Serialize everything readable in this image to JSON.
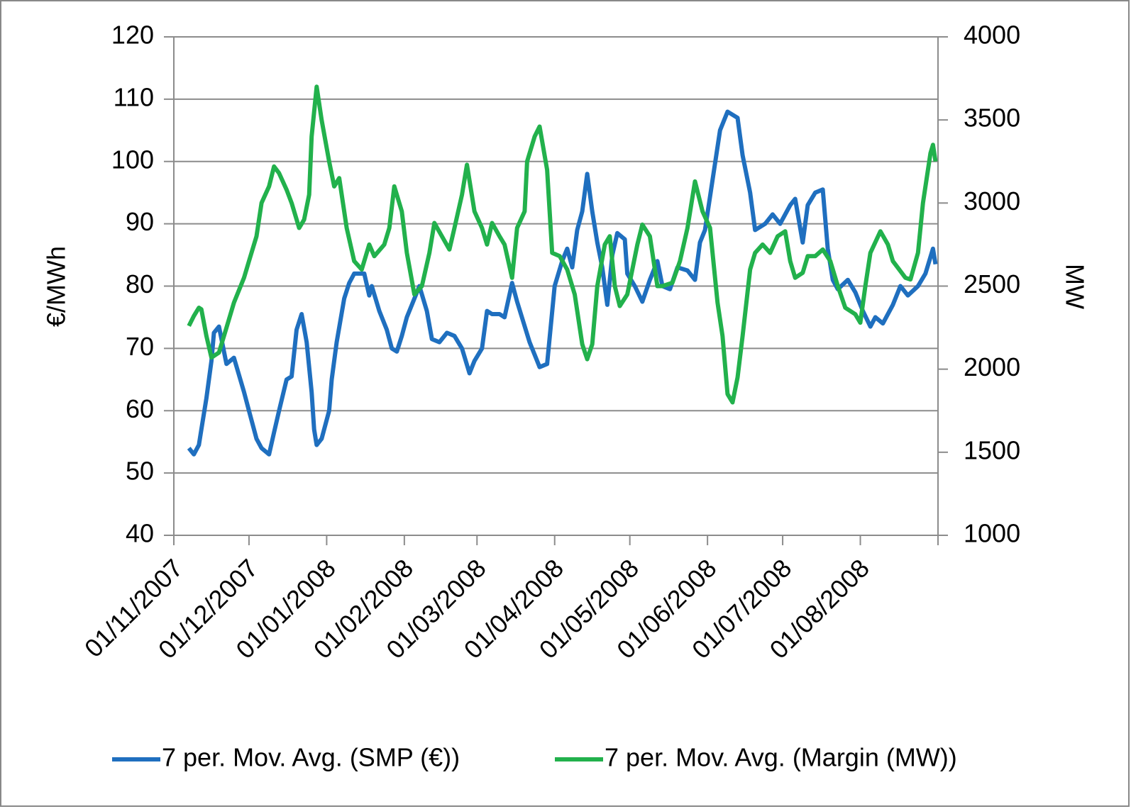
{
  "chart_data": {
    "type": "line",
    "ylabel": "€/MWh",
    "y2label": "MW",
    "xlim": [
      "01/11/2007",
      "01/09/2008"
    ],
    "xticks": [
      "01/11/2007",
      "01/12/2007",
      "01/01/2008",
      "01/02/2008",
      "01/03/2008",
      "01/04/2008",
      "01/05/2008",
      "01/06/2008",
      "01/07/2008",
      "01/08/2008"
    ],
    "ylim": [
      40,
      120
    ],
    "yticks": [
      40,
      50,
      60,
      70,
      80,
      90,
      100,
      110,
      120
    ],
    "y2lim": [
      1000,
      4000
    ],
    "y2ticks": [
      1000,
      1500,
      2000,
      2500,
      3000,
      3500,
      4000
    ],
    "grid": true,
    "legend": "bottom",
    "series": [
      {
        "name": "7 per. Mov. Avg. (SMP (€))",
        "color": "#1f6fbf",
        "axis": "y",
        "x": [
          "07/11/2007",
          "09/11/2007",
          "11/11/2007",
          "12/11/2007",
          "14/11/2007",
          "16/11/2007",
          "17/11/2007",
          "19/11/2007",
          "22/11/2007",
          "25/11/2007",
          "29/11/2007",
          "01/12/2007",
          "04/12/2007",
          "06/12/2007",
          "09/12/2007",
          "11/12/2007",
          "13/12/2007",
          "16/12/2007",
          "18/12/2007",
          "20/12/2007",
          "22/12/2007",
          "24/12/2007",
          "26/12/2007",
          "27/12/2007",
          "28/12/2007",
          "30/12/2007",
          "02/01/2008",
          "03/01/2008",
          "05/01/2008",
          "08/01/2008",
          "10/01/2008",
          "12/01/2008",
          "16/01/2008",
          "18/01/2008",
          "19/01/2008",
          "22/01/2008",
          "25/01/2008",
          "27/01/2008",
          "29/01/2008",
          "31/01/2008",
          "02/02/2008",
          "04/02/2008",
          "07/02/2008",
          "10/02/2008",
          "12/02/2008",
          "15/02/2008",
          "18/02/2008",
          "21/02/2008",
          "24/02/2008",
          "27/02/2008",
          "29/02/2008",
          "03/03/2008",
          "05/03/2008",
          "07/03/2008",
          "10/03/2008",
          "12/03/2008",
          "15/03/2008",
          "17/03/2008",
          "22/03/2008",
          "24/03/2008",
          "26/03/2008",
          "29/03/2008",
          "01/04/2008",
          "04/04/2008",
          "06/04/2008",
          "08/04/2008",
          "10/04/2008",
          "12/04/2008",
          "14/04/2008",
          "16/04/2008",
          "18/04/2008",
          "20/04/2008",
          "22/04/2008",
          "24/04/2008",
          "26/04/2008",
          "29/04/2008",
          "30/04/2008",
          "03/05/2008",
          "06/05/2008",
          "09/05/2008",
          "12/05/2008",
          "14/05/2008",
          "17/05/2008",
          "20/05/2008",
          "24/05/2008",
          "27/05/2008",
          "29/05/2008",
          "31/05/2008",
          "03/06/2008",
          "06/06/2008",
          "09/06/2008",
          "13/06/2008",
          "15/06/2008",
          "18/06/2008",
          "20/06/2008",
          "24/06/2008",
          "27/06/2008",
          "30/06/2008",
          "04/07/2008",
          "06/07/2008",
          "09/07/2008",
          "11/07/2008",
          "14/07/2008",
          "17/07/2008",
          "19/07/2008",
          "21/07/2008",
          "23/07/2008",
          "27/07/2008",
          "30/07/2008",
          "02/08/2008",
          "05/08/2008",
          "07/08/2008",
          "10/08/2008",
          "14/08/2008",
          "17/08/2008",
          "20/08/2008",
          "24/08/2008",
          "27/08/2008",
          "30/08/2008",
          "31/08/2008"
        ],
        "values": [
          54,
          53,
          54.5,
          57,
          62,
          68,
          72.5,
          73.5,
          67.5,
          68.5,
          63,
          60,
          55.5,
          54,
          53,
          56.5,
          60,
          65,
          65.5,
          73,
          75.5,
          71,
          63,
          57,
          54.5,
          55.5,
          60,
          65,
          71,
          78,
          80.5,
          82,
          82,
          78.5,
          80,
          76,
          73,
          70,
          69.5,
          72,
          75,
          77,
          80,
          76,
          71.5,
          71,
          72.5,
          72,
          70,
          66,
          68,
          70,
          76,
          75.5,
          75.5,
          75,
          80.5,
          77.5,
          71,
          69,
          67,
          67.5,
          80,
          84,
          86,
          83,
          89,
          92,
          98,
          92,
          87,
          83,
          77,
          85,
          88.5,
          87.5,
          82,
          80,
          77.5,
          81,
          84,
          80,
          79.5,
          83,
          82.5,
          81,
          87,
          89,
          97,
          105,
          108,
          107,
          101,
          95,
          89,
          90,
          91.5,
          90,
          93,
          94,
          87,
          93,
          95,
          95.5,
          86,
          81,
          79.5,
          81,
          79,
          76,
          73.5,
          75,
          74,
          77,
          80,
          78.5,
          80,
          82,
          86,
          83.5
        ]
      },
      {
        "name": "7 per. Mov. Avg. (Margin (MW))",
        "color": "#22b14c",
        "axis": "y2",
        "x": [
          "07/11/2007",
          "09/11/2007",
          "11/11/2007",
          "12/11/2007",
          "14/11/2007",
          "16/11/2007",
          "19/11/2007",
          "22/11/2007",
          "25/11/2007",
          "29/11/2007",
          "01/12/2007",
          "04/12/2007",
          "06/12/2007",
          "09/12/2007",
          "11/12/2007",
          "13/12/2007",
          "16/12/2007",
          "18/12/2007",
          "21/12/2007",
          "23/12/2007",
          "25/12/2007",
          "26/12/2007",
          "28/12/2007",
          "30/12/2007",
          "02/01/2008",
          "04/01/2008",
          "06/01/2008",
          "09/01/2008",
          "12/01/2008",
          "15/01/2008",
          "18/01/2008",
          "20/01/2008",
          "24/01/2008",
          "26/01/2008",
          "28/01/2008",
          "31/01/2008",
          "02/02/2008",
          "05/02/2008",
          "08/02/2008",
          "11/02/2008",
          "13/02/2008",
          "16/02/2008",
          "19/02/2008",
          "21/02/2008",
          "24/02/2008",
          "26/02/2008",
          "29/02/2008",
          "03/03/2008",
          "05/03/2008",
          "07/03/2008",
          "10/03/2008",
          "12/03/2008",
          "15/03/2008",
          "17/03/2008",
          "20/03/2008",
          "21/03/2008",
          "24/03/2008",
          "26/03/2008",
          "29/03/2008",
          "31/03/2008",
          "03/04/2008",
          "06/04/2008",
          "09/04/2008",
          "12/04/2008",
          "14/04/2008",
          "16/04/2008",
          "18/04/2008",
          "21/04/2008",
          "23/04/2008",
          "25/04/2008",
          "27/04/2008",
          "30/04/2008",
          "04/05/2008",
          "06/05/2008",
          "09/05/2008",
          "12/05/2008",
          "14/05/2008",
          "18/05/2008",
          "21/05/2008",
          "24/05/2008",
          "27/05/2008",
          "30/05/2008",
          "02/06/2008",
          "05/06/2008",
          "07/06/2008",
          "09/06/2008",
          "11/06/2008",
          "13/06/2008",
          "15/06/2008",
          "18/06/2008",
          "20/06/2008",
          "23/06/2008",
          "26/06/2008",
          "29/06/2008",
          "02/07/2008",
          "04/07/2008",
          "06/07/2008",
          "09/07/2008",
          "11/07/2008",
          "14/07/2008",
          "17/07/2008",
          "20/07/2008",
          "23/07/2008",
          "26/07/2008",
          "30/07/2008",
          "01/08/2008",
          "03/08/2008",
          "05/08/2008",
          "09/08/2008",
          "12/08/2008",
          "14/08/2008",
          "19/08/2008",
          "21/08/2008",
          "24/08/2008",
          "26/08/2008",
          "29/08/2008",
          "30/08/2008",
          "31/08/2008"
        ],
        "values": [
          2260,
          2320,
          2370,
          2360,
          2200,
          2070,
          2100,
          2250,
          2400,
          2550,
          2650,
          2800,
          3000,
          3100,
          3220,
          3180,
          3080,
          3000,
          2850,
          2900,
          3050,
          3400,
          3700,
          3500,
          3250,
          3100,
          3150,
          2850,
          2650,
          2600,
          2750,
          2680,
          2750,
          2850,
          3100,
          2950,
          2700,
          2450,
          2500,
          2700,
          2880,
          2800,
          2720,
          2850,
          3050,
          3230,
          2950,
          2850,
          2750,
          2880,
          2800,
          2750,
          2550,
          2850,
          2950,
          3250,
          3400,
          3460,
          3200,
          2700,
          2680,
          2600,
          2450,
          2150,
          2060,
          2150,
          2500,
          2750,
          2800,
          2500,
          2380,
          2450,
          2750,
          2870,
          2800,
          2500,
          2500,
          2520,
          2650,
          2850,
          3130,
          2950,
          2850,
          2400,
          2200,
          1850,
          1800,
          1950,
          2200,
          2600,
          2700,
          2750,
          2700,
          2800,
          2830,
          2650,
          2550,
          2580,
          2680,
          2680,
          2720,
          2650,
          2500,
          2370,
          2330,
          2280,
          2500,
          2700,
          2830,
          2750,
          2650,
          2550,
          2540,
          2700,
          3000,
          3300,
          3350,
          3250
        ]
      }
    ]
  }
}
